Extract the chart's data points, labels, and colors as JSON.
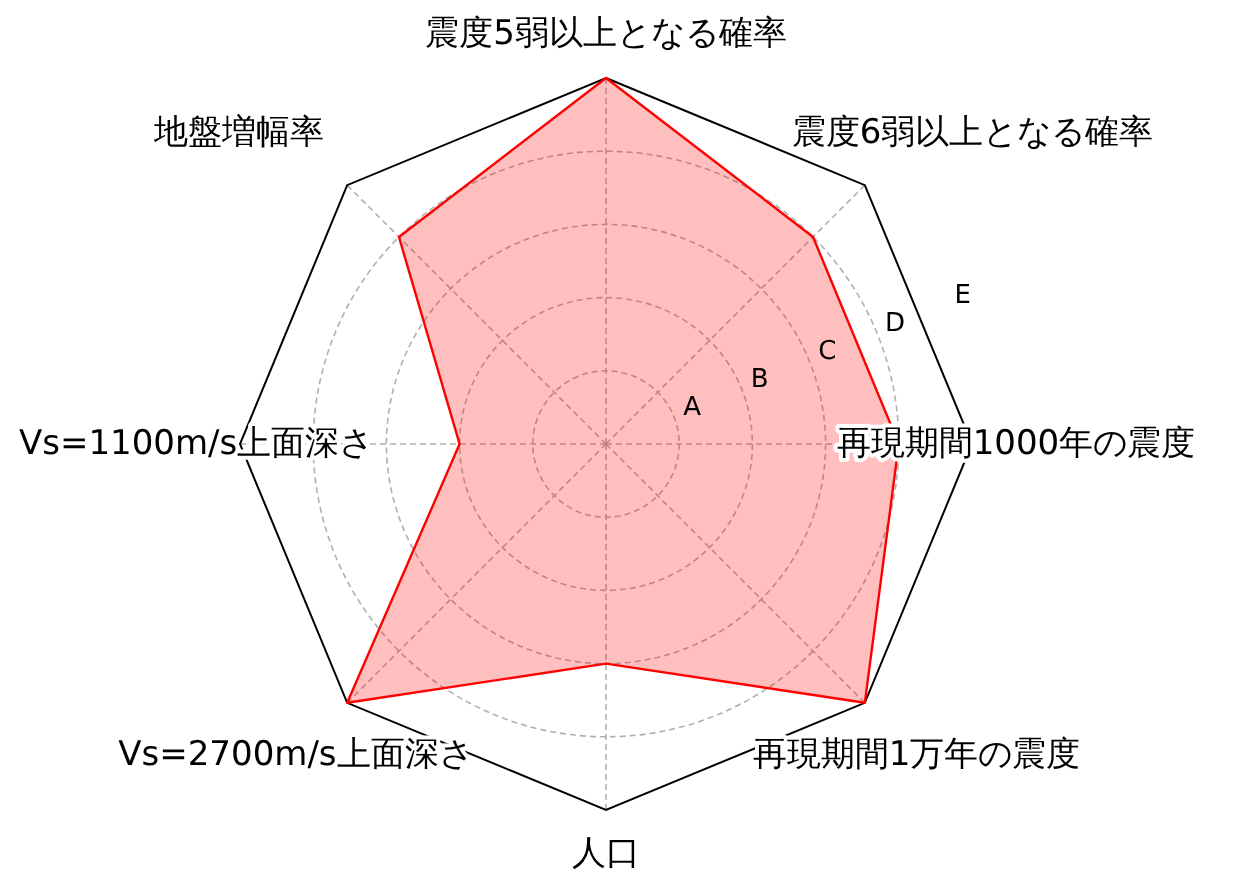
{
  "chart_data": {
    "type": "radar",
    "categories": [
      "震度5弱以上となる確率",
      "震度6弱以上となる確率",
      "再現期間1000年の震度",
      "再現期間1万年の震度",
      "人口",
      "Vs=2700m/s上面深さ",
      "Vs=1100m/s上面深さ",
      "地盤増幅率"
    ],
    "series": [
      {
        "color": "#ff0000",
        "values": [
          5,
          4,
          4,
          5,
          3,
          5,
          2,
          4
        ]
      }
    ],
    "ylim": [
      0,
      5
    ],
    "yticks": [
      {
        "value": 1,
        "label": "A"
      },
      {
        "value": 2,
        "label": "B"
      },
      {
        "value": 3,
        "label": "C"
      },
      {
        "value": 4,
        "label": "D"
      },
      {
        "value": 5,
        "label": "E"
      }
    ],
    "grid": true,
    "marker": "none"
  }
}
